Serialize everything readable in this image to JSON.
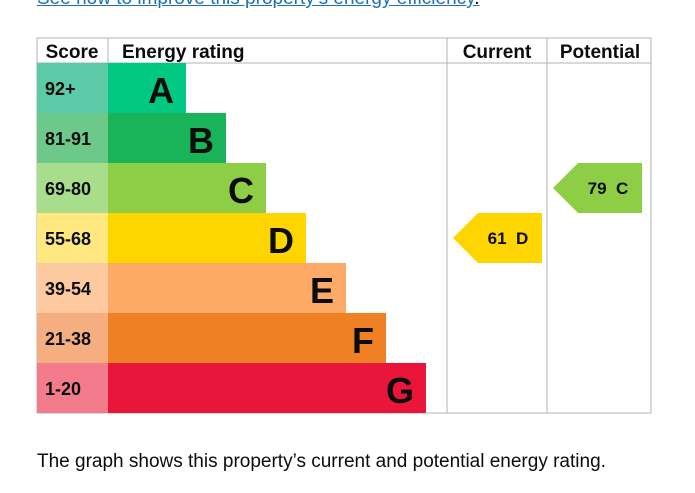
{
  "link": {
    "text": "See how to improve this property’s energy efficiency",
    "trail": "."
  },
  "chart_data": {
    "type": "bar",
    "headers": {
      "score": "Score",
      "rating": "Energy rating",
      "current": "Current",
      "potential": "Potential"
    },
    "bands": [
      {
        "letter": "A",
        "range": "92+",
        "score_color": "#5cc9a7",
        "bar_color": "#00c781"
      },
      {
        "letter": "B",
        "range": "81-91",
        "score_color": "#6cc98a",
        "bar_color": "#19b459"
      },
      {
        "letter": "C",
        "range": "69-80",
        "score_color": "#a8dd8c",
        "bar_color": "#8dce46"
      },
      {
        "letter": "D",
        "range": "55-68",
        "score_color": "#ffe880",
        "bar_color": "#ffd500"
      },
      {
        "letter": "E",
        "range": "39-54",
        "score_color": "#fdc99f",
        "bar_color": "#fcaa65"
      },
      {
        "letter": "F",
        "range": "21-38",
        "score_color": "#f4ae80",
        "bar_color": "#ef8023"
      },
      {
        "letter": "G",
        "range": "1-20",
        "score_color": "#f47b8c",
        "bar_color": "#e9153b"
      }
    ],
    "current": {
      "value": 61,
      "band": "D",
      "label": "61  D",
      "color": "#ffd500"
    },
    "potential": {
      "value": 79,
      "band": "C",
      "label": "79  C",
      "color": "#8dce46"
    }
  },
  "caption": "The graph shows this property’s current and potential energy rating."
}
